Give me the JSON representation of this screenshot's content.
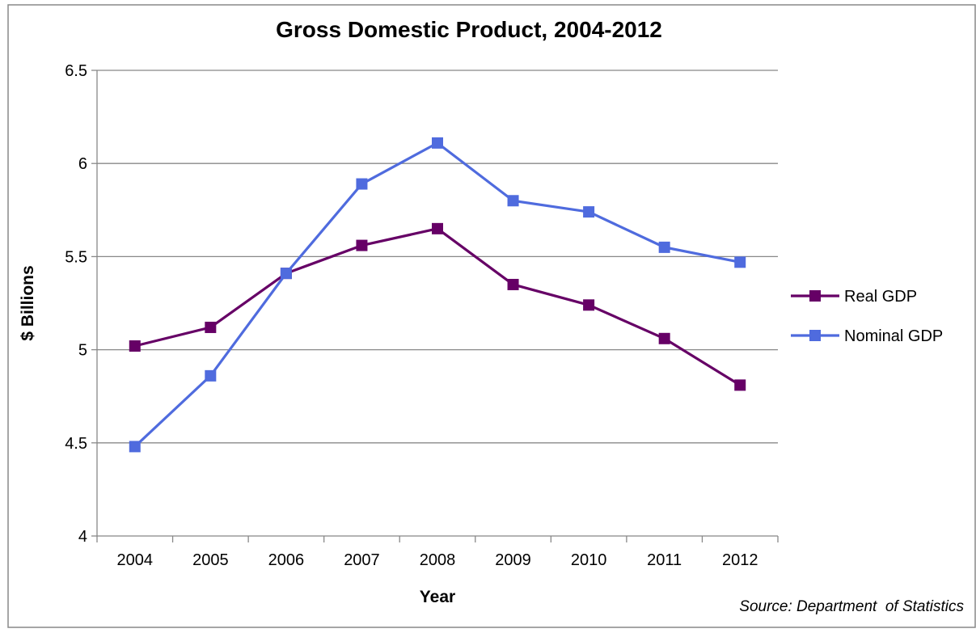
{
  "chart_data": {
    "type": "line",
    "title": "Gross Domestic Product, 2004-2012",
    "xlabel": "Year",
    "ylabel": "$ Billions",
    "x": [
      "2004",
      "2005",
      "2006",
      "2007",
      "2008",
      "2009",
      "2010",
      "2011",
      "2012"
    ],
    "ylim": [
      4,
      6.5
    ],
    "yticks": [
      "4",
      "4.5",
      "5",
      "5.5",
      "6",
      "6.5"
    ],
    "grid": "horizontal",
    "legend_position": "right",
    "series": [
      {
        "name": "Real GDP",
        "color": "#660066",
        "marker": "square",
        "values": [
          5.02,
          5.12,
          5.41,
          5.56,
          5.65,
          5.35,
          5.24,
          5.06,
          4.81
        ]
      },
      {
        "name": "Nominal GDP",
        "color": "#4F6BDE",
        "marker": "square",
        "values": [
          4.48,
          4.86,
          5.41,
          5.89,
          6.11,
          5.8,
          5.74,
          5.55,
          5.47
        ]
      }
    ],
    "source": "Source: Department  of Statistics"
  }
}
